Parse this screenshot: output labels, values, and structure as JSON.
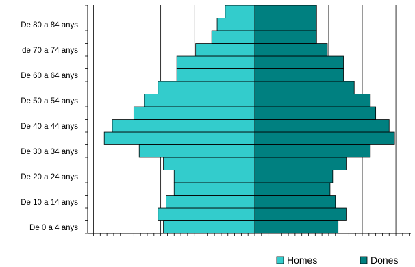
{
  "chart_data": {
    "type": "bar",
    "orientation": "horizontal",
    "layout": "population-pyramid",
    "title": "",
    "xlabel": "",
    "ylabel": "",
    "xlim": [
      -6,
      6
    ],
    "grid": true,
    "legend_position": "bottom-right",
    "categories": [
      "0-4",
      "5-9",
      "10-14",
      "15-19",
      "20-24",
      "25-29",
      "30-34",
      "35-39",
      "40-44",
      "45-49",
      "50-54",
      "55-59",
      "60-64",
      "65-69",
      "70-74",
      "75-79",
      "80-84",
      "85+"
    ],
    "category_tick_labels": [
      {
        "index": 0,
        "text": "De 0 a 4 anys"
      },
      {
        "index": 2,
        "text": "De 10 a 14 anys"
      },
      {
        "index": 4,
        "text": "De 20 a 24 anys"
      },
      {
        "index": 6,
        "text": "De 30 a 34 anys"
      },
      {
        "index": 8,
        "text": "De 40 a 44 anys"
      },
      {
        "index": 10,
        "text": "De 50 a 54 anys"
      },
      {
        "index": 12,
        "text": "De 60 a 64 anys"
      },
      {
        "index": 14,
        "text": "de 70 a 74 anys"
      },
      {
        "index": 16,
        "text": "De 80 a 84 anys"
      }
    ],
    "series": [
      {
        "name": "Homes",
        "color": "#33CCCC",
        "side": "left",
        "values": [
          3.4,
          3.6,
          3.3,
          3.0,
          3.0,
          3.4,
          4.3,
          5.6,
          5.3,
          4.5,
          4.1,
          3.6,
          2.9,
          2.9,
          2.2,
          1.6,
          1.4,
          1.1
        ]
      },
      {
        "name": "Dones",
        "color": "#008080",
        "side": "right",
        "values": [
          3.1,
          3.4,
          3.0,
          2.8,
          2.9,
          3.4,
          4.3,
          5.2,
          5.0,
          4.5,
          4.3,
          3.7,
          3.3,
          3.3,
          2.7,
          2.3,
          2.3,
          2.3
        ]
      }
    ]
  }
}
